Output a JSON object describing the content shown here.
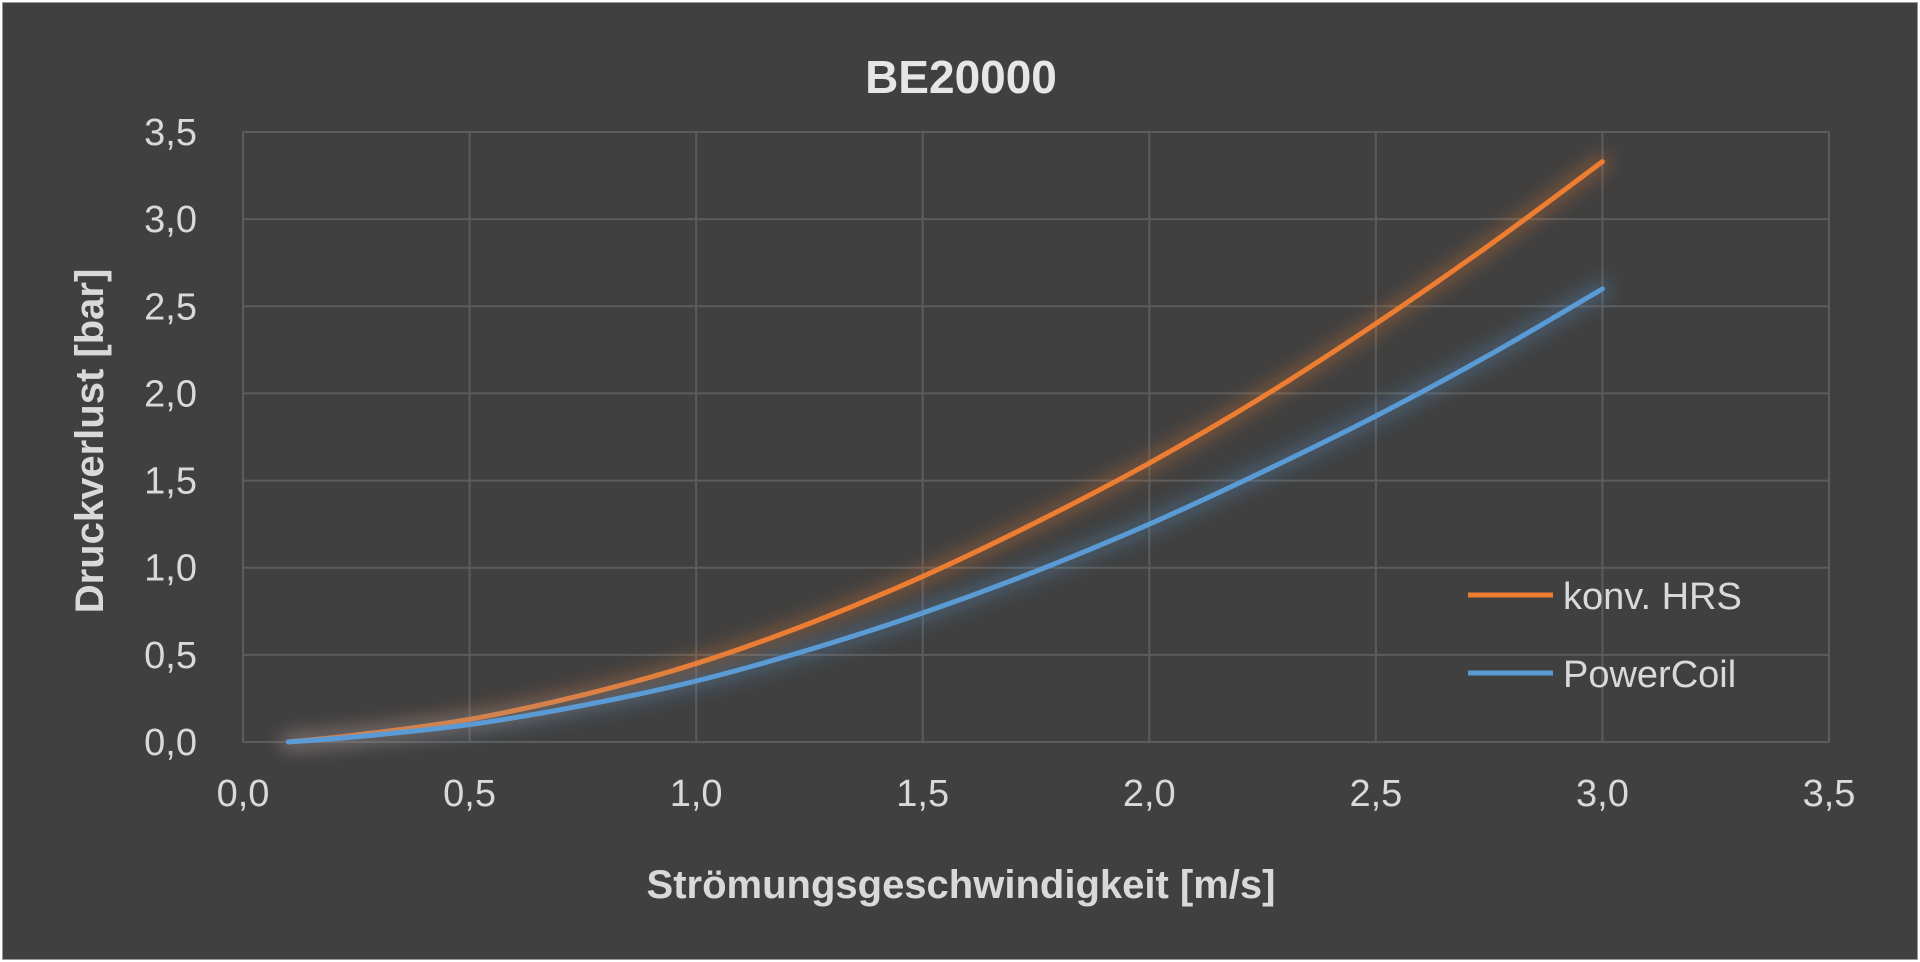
{
  "chart_data": {
    "type": "line",
    "title": "BE20000",
    "xlabel": "Strömungsgeschwindigkeit [m/s]",
    "ylabel": "Druckverlust [bar]",
    "xlim": [
      0,
      3.5
    ],
    "ylim": [
      0,
      3.5
    ],
    "xticks": [
      "0,0",
      "0,5",
      "1,0",
      "1,5",
      "2,0",
      "2,5",
      "3,0",
      "3,5"
    ],
    "yticks": [
      "0,0",
      "0,5",
      "1,0",
      "1,5",
      "2,0",
      "2,5",
      "3,0",
      "3,5"
    ],
    "grid": true,
    "legend_position": "right",
    "series": [
      {
        "name": "konv. HRS",
        "color": "#ed7d31",
        "x": [
          0.1,
          0.25,
          0.5,
          0.75,
          1.0,
          1.25,
          1.5,
          1.75,
          2.0,
          2.25,
          2.5,
          2.75,
          3.0
        ],
        "y": [
          0.0,
          0.04,
          0.13,
          0.27,
          0.45,
          0.68,
          0.95,
          1.26,
          1.6,
          1.98,
          2.4,
          2.85,
          3.33
        ]
      },
      {
        "name": "PowerCoil",
        "color": "#5b9bd5",
        "x": [
          0.1,
          0.25,
          0.5,
          0.75,
          1.0,
          1.25,
          1.5,
          1.75,
          2.0,
          2.25,
          2.5,
          2.75,
          3.0
        ],
        "y": [
          0.0,
          0.03,
          0.1,
          0.21,
          0.35,
          0.53,
          0.74,
          0.98,
          1.25,
          1.55,
          1.87,
          2.22,
          2.6
        ]
      }
    ]
  }
}
